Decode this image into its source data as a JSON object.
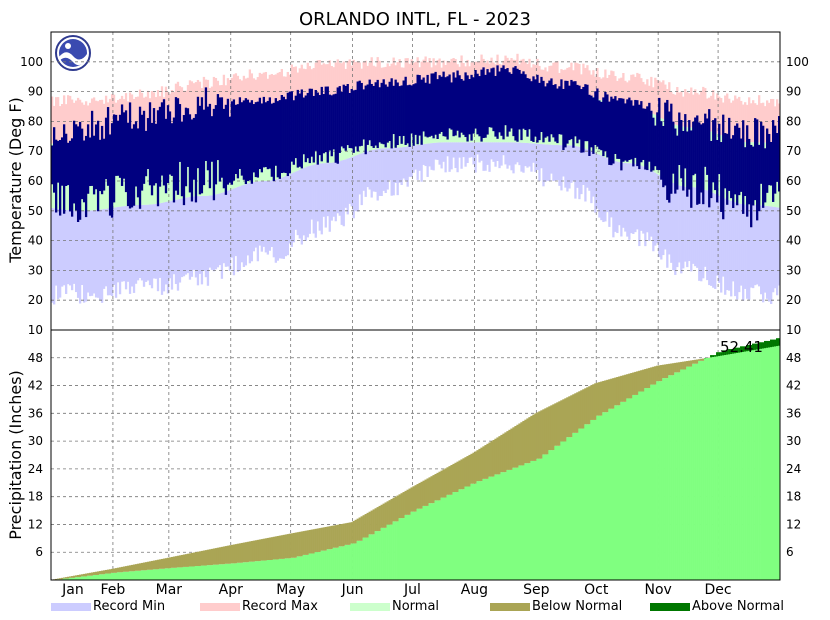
{
  "chart_data": {
    "type": "climate-summary",
    "title": "ORLANDO INTL, FL - 2023",
    "months": [
      "Jan",
      "Feb",
      "Mar",
      "Apr",
      "May",
      "Jun",
      "Jul",
      "Aug",
      "Sep",
      "Oct",
      "Nov",
      "Dec"
    ],
    "temperature": {
      "ylabel": "Temperature (Deg F)",
      "ylim": [
        10,
        110
      ],
      "ticks": [
        10,
        20,
        30,
        40,
        50,
        60,
        70,
        80,
        90,
        100
      ],
      "monthly_record_min": [
        22,
        24,
        28,
        35,
        45,
        57,
        65,
        66,
        58,
        42,
        30,
        22
      ],
      "monthly_record_max": [
        87,
        89,
        93,
        96,
        99,
        100,
        100,
        101,
        98,
        95,
        90,
        87
      ],
      "monthly_normal_low": [
        50,
        52,
        55,
        60,
        66,
        71,
        73,
        73,
        72,
        66,
        58,
        52
      ],
      "monthly_normal_high": [
        72,
        75,
        79,
        83,
        88,
        91,
        92,
        92,
        90,
        85,
        78,
        73
      ],
      "monthly_observed_low": [
        52,
        58,
        60,
        62,
        68,
        73,
        76,
        76,
        73,
        66,
        58,
        52
      ],
      "monthly_observed_high": [
        78,
        82,
        86,
        87,
        90,
        93,
        95,
        97,
        92,
        86,
        80,
        76
      ]
    },
    "precipitation": {
      "ylabel": "Precipitation (Inches)",
      "ylim": [
        0,
        54
      ],
      "ticks": [
        6,
        12,
        18,
        24,
        30,
        36,
        42,
        48
      ],
      "observed_cumulative_end_of_month": [
        1.6,
        2.6,
        3.6,
        4.8,
        8.0,
        15.0,
        21.2,
        26.2,
        35.5,
        43.2,
        49.4,
        52.41
      ],
      "normal_cumulative_end_of_month": [
        2.4,
        4.8,
        7.5,
        10.0,
        12.5,
        20.0,
        27.5,
        36.0,
        42.5,
        46.3,
        48.3,
        50.6
      ],
      "total_label": "52.41"
    },
    "legend": [
      "Record Min",
      "Record Max",
      "Normal",
      "Below Normal",
      "Above Normal"
    ],
    "colors": {
      "record_min": "#ccccff",
      "record_max": "#ffcccc",
      "normal": "#ccffcc",
      "observed_temp": "#000080",
      "precip_observed": "#80ff80",
      "below_normal": "#aaa555",
      "above_normal": "#007700"
    }
  }
}
